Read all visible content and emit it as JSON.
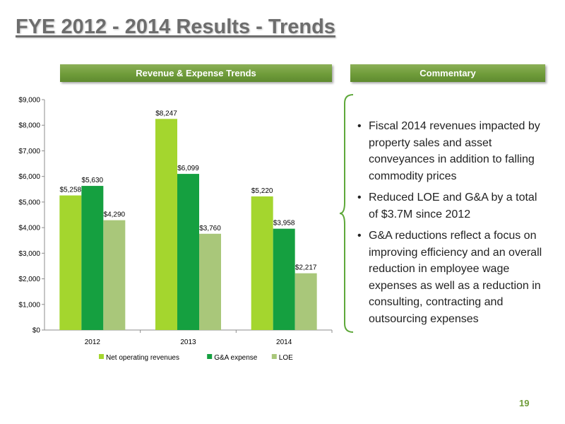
{
  "slide": {
    "title": "FYE 2012 - 2014 Results - Trends",
    "left_header": "Revenue & Expense Trends",
    "right_header": "Commentary",
    "page_number": "19"
  },
  "commentary": [
    "Fiscal 2014 revenues impacted by property sales and asset conveyances in addition to falling commodity prices",
    "Reduced LOE and G&A by a total of $3.7M since 2012",
    "G&A reductions reflect a focus on improving efficiency and an overall reduction in employee wage expenses as well as a reduction in consulting, contracting and outsourcing expenses"
  ],
  "colors": {
    "accent": "#6f9c3a",
    "brace": "#5ea83a"
  },
  "chart_data": {
    "type": "bar",
    "categories": [
      "2012",
      "2013",
      "2014"
    ],
    "series": [
      {
        "name": "Net operating revenues",
        "values": [
          5258,
          8247,
          5220
        ],
        "labels": [
          "$5,258",
          "$8,247",
          "$5,220"
        ],
        "color": "#a4d62e"
      },
      {
        "name": "G&A expense",
        "values": [
          5630,
          6099,
          3958
        ],
        "labels": [
          "$5,630",
          "$6,099",
          "$3,958"
        ],
        "color": "#15a040"
      },
      {
        "name": "LOE",
        "values": [
          4290,
          3760,
          2217
        ],
        "labels": [
          "$4,290",
          "$3,760",
          "$2,217"
        ],
        "color": "#a9c77a"
      }
    ],
    "ylim": [
      0,
      9000
    ],
    "yticks": [
      0,
      1000,
      2000,
      3000,
      4000,
      5000,
      6000,
      7000,
      8000,
      9000
    ],
    "ytick_labels": [
      "$0",
      "$1,000",
      "$2,000",
      "$3,000",
      "$4,000",
      "$5,000",
      "$6,000",
      "$7,000",
      "$8,000",
      "$9,000"
    ],
    "grid": false,
    "legend": "bottom"
  }
}
